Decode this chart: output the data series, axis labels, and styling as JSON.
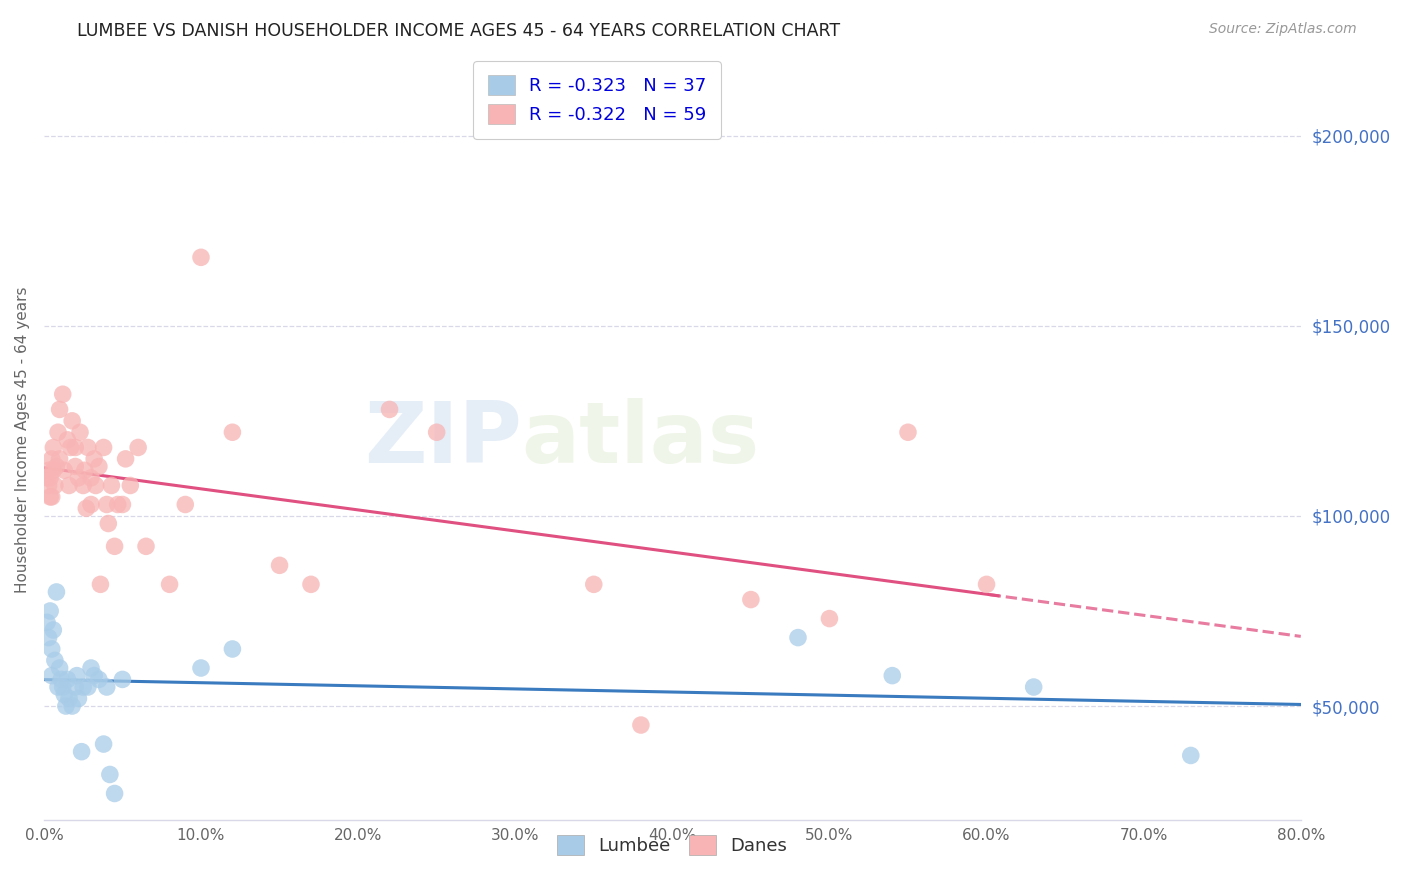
{
  "title": "LUMBEE VS DANISH HOUSEHOLDER INCOME AGES 45 - 64 YEARS CORRELATION CHART",
  "source": "Source: ZipAtlas.com",
  "ylabel": "Householder Income Ages 45 - 64 years",
  "xlabel_ticks": [
    "0.0%",
    "10.0%",
    "20.0%",
    "30.0%",
    "40.0%",
    "50.0%",
    "60.0%",
    "70.0%",
    "80.0%"
  ],
  "ytick_labels": [
    "$50,000",
    "$100,000",
    "$150,000",
    "$200,000"
  ],
  "ytick_values": [
    50000,
    100000,
    150000,
    200000
  ],
  "xlim": [
    0,
    0.8
  ],
  "ylim": [
    20000,
    220000
  ],
  "lumbee_R": "-0.323",
  "lumbee_N": "37",
  "danes_R": "-0.322",
  "danes_N": "59",
  "lumbee_color": "#a8cce8",
  "danes_color": "#f8b4b4",
  "lumbee_line_color": "#3a7abf",
  "danes_line_color": "#e05080",
  "watermark": "ZIPatlas",
  "lumbee_x": [
    0.002,
    0.003,
    0.004,
    0.005,
    0.005,
    0.006,
    0.007,
    0.008,
    0.009,
    0.01,
    0.011,
    0.012,
    0.013,
    0.014,
    0.015,
    0.016,
    0.018,
    0.02,
    0.021,
    0.022,
    0.024,
    0.025,
    0.028,
    0.03,
    0.032,
    0.035,
    0.038,
    0.04,
    0.042,
    0.045,
    0.05,
    0.1,
    0.12,
    0.48,
    0.54,
    0.63,
    0.73
  ],
  "lumbee_y": [
    72000,
    68000,
    75000,
    65000,
    58000,
    70000,
    62000,
    80000,
    55000,
    60000,
    57000,
    55000,
    53000,
    50000,
    57000,
    52000,
    50000,
    55000,
    58000,
    52000,
    38000,
    55000,
    55000,
    60000,
    58000,
    57000,
    40000,
    55000,
    32000,
    27000,
    57000,
    60000,
    65000,
    68000,
    58000,
    55000,
    37000
  ],
  "danes_x": [
    0.002,
    0.003,
    0.003,
    0.004,
    0.004,
    0.005,
    0.005,
    0.006,
    0.006,
    0.007,
    0.008,
    0.009,
    0.01,
    0.01,
    0.012,
    0.013,
    0.015,
    0.016,
    0.017,
    0.018,
    0.02,
    0.02,
    0.022,
    0.023,
    0.025,
    0.026,
    0.027,
    0.028,
    0.03,
    0.03,
    0.032,
    0.033,
    0.035,
    0.036,
    0.038,
    0.04,
    0.041,
    0.043,
    0.045,
    0.047,
    0.05,
    0.052,
    0.055,
    0.06,
    0.065,
    0.08,
    0.09,
    0.1,
    0.12,
    0.15,
    0.17,
    0.22,
    0.25,
    0.35,
    0.38,
    0.45,
    0.5,
    0.55,
    0.6
  ],
  "danes_y": [
    110000,
    112000,
    108000,
    105000,
    110000,
    115000,
    105000,
    112000,
    118000,
    108000,
    113000,
    122000,
    115000,
    128000,
    132000,
    112000,
    120000,
    108000,
    118000,
    125000,
    113000,
    118000,
    110000,
    122000,
    108000,
    112000,
    102000,
    118000,
    110000,
    103000,
    115000,
    108000,
    113000,
    82000,
    118000,
    103000,
    98000,
    108000,
    92000,
    103000,
    103000,
    115000,
    108000,
    118000,
    92000,
    82000,
    103000,
    168000,
    122000,
    87000,
    82000,
    128000,
    122000,
    82000,
    45000,
    78000,
    73000,
    122000,
    82000
  ],
  "grid_color": "#d8d8e8",
  "spine_color": "#d8d8e8"
}
